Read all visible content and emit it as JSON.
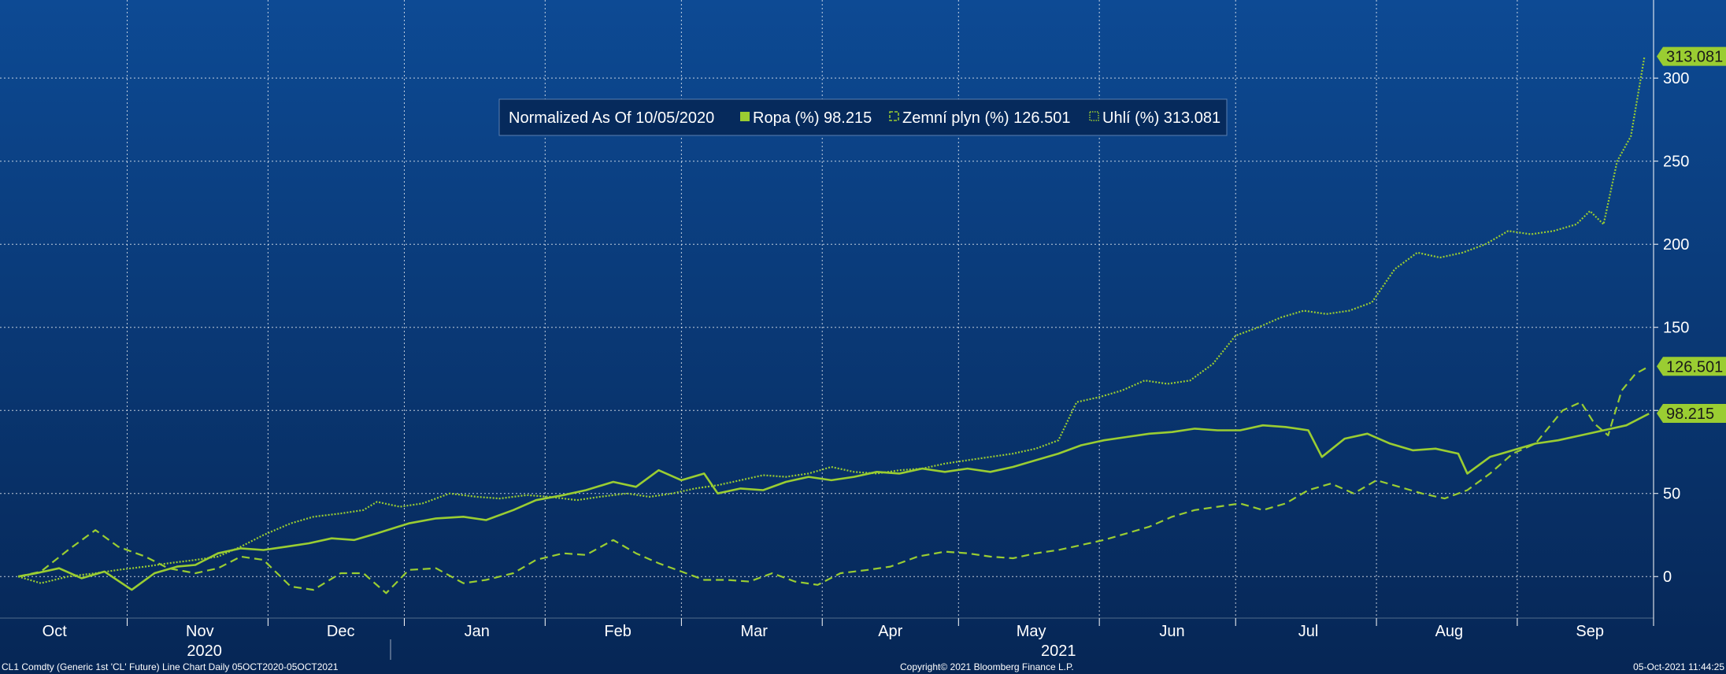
{
  "footer": {
    "left": "CL1 Comdty (Generic 1st 'CL' Future) Line Chart  Daily 05OCT2020-05OCT2021",
    "center": "Copyright© 2021 Bloomberg Finance L.P.",
    "right": "05-Oct-2021 11:44:25"
  },
  "chart_data": {
    "type": "line",
    "legend": {
      "prefix": "Normalized As Of 10/05/2020",
      "placement": "top-center",
      "entries": [
        {
          "label": "Ropa (%)",
          "value": "98.215"
        },
        {
          "label": "Zemní plyn (%)",
          "value": "126.501"
        },
        {
          "label": "Uhlí (%)",
          "value": "313.081"
        }
      ]
    },
    "line_color": "#9acd32",
    "y_axis": {
      "side": "right",
      "ticks": [
        0,
        50,
        100,
        150,
        200,
        250,
        300
      ],
      "tick_labels": [
        "0",
        "50",
        "",
        "150",
        "200",
        "250",
        "300"
      ],
      "range": [
        -25,
        347
      ]
    },
    "x_axis": {
      "range": [
        "2020-10-01",
        "2021-09-30"
      ],
      "month_labels": [
        {
          "label": "Oct",
          "date": "2020-10-13"
        },
        {
          "label": "Nov",
          "date": "2020-11-14"
        },
        {
          "label": "Dec",
          "date": "2020-12-15"
        },
        {
          "label": "Jan",
          "date": "2021-01-14"
        },
        {
          "label": "Feb",
          "date": "2021-02-14"
        },
        {
          "label": "Mar",
          "date": "2021-03-16"
        },
        {
          "label": "Apr",
          "date": "2021-04-15"
        },
        {
          "label": "May",
          "date": "2021-05-16"
        },
        {
          "label": "Jun",
          "date": "2021-06-16"
        },
        {
          "label": "Jul",
          "date": "2021-07-16"
        },
        {
          "label": "Aug",
          "date": "2021-08-16"
        },
        {
          "label": "Sep",
          "date": "2021-09-16"
        }
      ],
      "year_labels": [
        {
          "label": "2020",
          "date": "2020-11-15"
        },
        {
          "label": "2021",
          "date": "2021-05-22"
        }
      ],
      "gridlines": [
        "2020-10-29",
        "2020-11-29",
        "2020-12-29",
        "2021-01-29",
        "2021-02-28",
        "2021-03-31",
        "2021-04-30",
        "2021-05-31",
        "2021-06-30",
        "2021-07-31",
        "2021-08-31",
        "2021-09-30"
      ]
    },
    "grid": true,
    "value_labels": [
      {
        "series": "Uhlí (%)",
        "value": 313.081,
        "text": "313.081"
      },
      {
        "series": "Zemní plyn (%)",
        "value": 126.501,
        "text": "126.501"
      },
      {
        "series": "Ropa (%)",
        "value": 98.215,
        "text": "98.215"
      }
    ],
    "series": [
      {
        "name": "Ropa (%)",
        "style": "solid",
        "x": [
          "2020-10-05",
          "2020-10-09",
          "2020-10-14",
          "2020-10-19",
          "2020-10-24",
          "2020-10-30",
          "2020-11-04",
          "2020-11-09",
          "2020-11-13",
          "2020-11-18",
          "2020-11-23",
          "2020-11-28",
          "2020-12-03",
          "2020-12-08",
          "2020-12-13",
          "2020-12-18",
          "2020-12-23",
          "2020-12-30",
          "2021-01-05",
          "2021-01-11",
          "2021-01-16",
          "2021-01-22",
          "2021-01-27",
          "2021-02-02",
          "2021-02-07",
          "2021-02-13",
          "2021-02-18",
          "2021-02-23",
          "2021-02-28",
          "2021-03-05",
          "2021-03-08",
          "2021-03-13",
          "2021-03-18",
          "2021-03-23",
          "2021-03-28",
          "2021-04-02",
          "2021-04-07",
          "2021-04-12",
          "2021-04-17",
          "2021-04-22",
          "2021-04-27",
          "2021-05-02",
          "2021-05-07",
          "2021-05-12",
          "2021-05-17",
          "2021-05-22",
          "2021-05-27",
          "2021-06-01",
          "2021-06-06",
          "2021-06-11",
          "2021-06-16",
          "2021-06-21",
          "2021-06-26",
          "2021-07-01",
          "2021-07-06",
          "2021-07-11",
          "2021-07-16",
          "2021-07-19",
          "2021-07-24",
          "2021-07-29",
          "2021-08-03",
          "2021-08-08",
          "2021-08-13",
          "2021-08-18",
          "2021-08-20",
          "2021-08-25",
          "2021-08-30",
          "2021-09-04",
          "2021-09-09",
          "2021-09-14",
          "2021-09-19",
          "2021-09-24",
          "2021-09-29"
        ],
        "values": [
          0,
          2,
          5,
          -1,
          3,
          -8,
          2,
          6,
          7,
          14,
          17,
          16,
          18,
          20,
          23,
          22,
          26,
          32,
          35,
          36,
          34,
          40,
          46,
          49,
          52,
          57,
          54,
          64,
          58,
          62,
          50,
          53,
          52,
          57,
          60,
          58,
          60,
          63,
          62,
          65,
          63,
          65,
          63,
          66,
          70,
          74,
          79,
          82,
          84,
          86,
          87,
          89,
          88,
          88,
          91,
          90,
          88,
          72,
          83,
          86,
          80,
          76,
          77,
          74,
          62,
          72,
          76,
          80,
          82,
          85,
          88,
          91,
          98
        ]
      },
      {
        "name": "Zemní plyn (%)",
        "style": "dashed",
        "x": [
          "2020-10-05",
          "2020-10-10",
          "2020-10-16",
          "2020-10-22",
          "2020-10-27",
          "2020-11-02",
          "2020-11-07",
          "2020-11-13",
          "2020-11-18",
          "2020-11-23",
          "2020-11-28",
          "2020-12-04",
          "2020-12-09",
          "2020-12-15",
          "2020-12-20",
          "2020-12-25",
          "2020-12-30",
          "2021-01-05",
          "2021-01-11",
          "2021-01-16",
          "2021-01-22",
          "2021-01-27",
          "2021-02-02",
          "2021-02-07",
          "2021-02-13",
          "2021-02-18",
          "2021-02-23",
          "2021-02-28",
          "2021-03-05",
          "2021-03-10",
          "2021-03-15",
          "2021-03-20",
          "2021-03-25",
          "2021-03-30",
          "2021-04-04",
          "2021-04-10",
          "2021-04-15",
          "2021-04-21",
          "2021-04-27",
          "2021-05-02",
          "2021-05-07",
          "2021-05-12",
          "2021-05-17",
          "2021-05-22",
          "2021-05-27",
          "2021-06-01",
          "2021-06-06",
          "2021-06-11",
          "2021-06-16",
          "2021-06-21",
          "2021-06-26",
          "2021-07-01",
          "2021-07-06",
          "2021-07-11",
          "2021-07-16",
          "2021-07-21",
          "2021-07-26",
          "2021-07-31",
          "2021-08-05",
          "2021-08-10",
          "2021-08-15",
          "2021-08-20",
          "2021-08-25",
          "2021-08-30",
          "2021-09-04",
          "2021-09-07",
          "2021-09-10",
          "2021-09-14",
          "2021-09-17",
          "2021-09-20",
          "2021-09-23",
          "2021-09-26",
          "2021-09-29"
        ],
        "values": [
          0,
          3,
          16,
          28,
          18,
          12,
          5,
          2,
          5,
          12,
          10,
          -6,
          -8,
          2,
          2,
          -10,
          4,
          5,
          -4,
          -2,
          2,
          10,
          14,
          13,
          22,
          14,
          8,
          3,
          -2,
          -2,
          -3,
          2,
          -3,
          -5,
          2,
          4,
          6,
          12,
          15,
          14,
          12,
          11,
          14,
          16,
          19,
          22,
          26,
          30,
          36,
          40,
          42,
          44,
          40,
          44,
          52,
          56,
          50,
          58,
          54,
          50,
          47,
          52,
          62,
          74,
          80,
          90,
          100,
          105,
          92,
          85,
          112,
          122,
          126.5
        ]
      },
      {
        "name": "Uhlí (%)",
        "style": "dotted",
        "x": [
          "2020-10-05",
          "2020-10-10",
          "2020-10-16",
          "2020-10-22",
          "2020-10-27",
          "2020-11-02",
          "2020-11-07",
          "2020-11-13",
          "2020-11-18",
          "2020-11-23",
          "2020-11-28",
          "2020-12-04",
          "2020-12-09",
          "2020-12-15",
          "2020-12-20",
          "2020-12-23",
          "2020-12-28",
          "2021-01-02",
          "2021-01-08",
          "2021-01-14",
          "2021-01-19",
          "2021-01-25",
          "2021-01-30",
          "2021-02-05",
          "2021-02-10",
          "2021-02-16",
          "2021-02-21",
          "2021-02-26",
          "2021-03-03",
          "2021-03-08",
          "2021-03-13",
          "2021-03-18",
          "2021-03-23",
          "2021-03-28",
          "2021-04-02",
          "2021-04-07",
          "2021-04-12",
          "2021-04-17",
          "2021-04-22",
          "2021-04-27",
          "2021-05-02",
          "2021-05-07",
          "2021-05-12",
          "2021-05-17",
          "2021-05-22",
          "2021-05-26",
          "2021-05-31",
          "2021-06-05",
          "2021-06-10",
          "2021-06-15",
          "2021-06-20",
          "2021-06-25",
          "2021-06-30",
          "2021-07-05",
          "2021-07-10",
          "2021-07-15",
          "2021-07-20",
          "2021-07-25",
          "2021-07-30",
          "2021-08-04",
          "2021-08-09",
          "2021-08-14",
          "2021-08-19",
          "2021-08-24",
          "2021-08-29",
          "2021-09-03",
          "2021-09-08",
          "2021-09-13",
          "2021-09-16",
          "2021-09-19",
          "2021-09-22",
          "2021-09-25",
          "2021-09-28"
        ],
        "values": [
          0,
          -4,
          0,
          2,
          4,
          6,
          8,
          10,
          12,
          18,
          25,
          32,
          36,
          38,
          40,
          45,
          42,
          44,
          50,
          48,
          47,
          49,
          48,
          46,
          48,
          50,
          48,
          50,
          53,
          55,
          58,
          61,
          60,
          62,
          66,
          63,
          62,
          64,
          65,
          68,
          70,
          72,
          74,
          77,
          82,
          105,
          108,
          112,
          118,
          116,
          118,
          128,
          145,
          150,
          156,
          160,
          158,
          160,
          165,
          185,
          195,
          192,
          195,
          200,
          208,
          206,
          208,
          212,
          220,
          212,
          250,
          265,
          313.081
        ]
      }
    ]
  }
}
